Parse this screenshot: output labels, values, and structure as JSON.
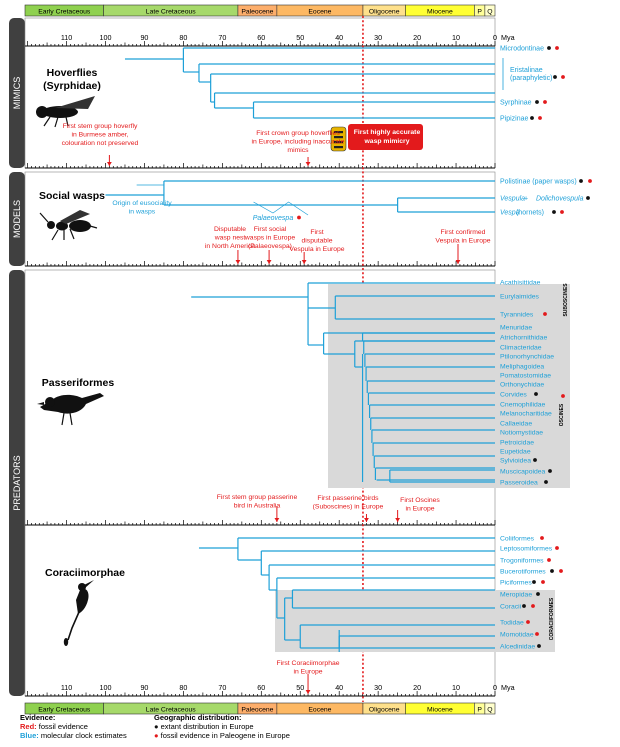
{
  "timescale": {
    "periods": [
      {
        "label": "Early Cretaceous",
        "color": "#8fd14f"
      },
      {
        "label": "Late Cretaceous",
        "color": "#a6d96a"
      },
      {
        "label": "Paleocene",
        "color": "#fdae6b"
      },
      {
        "label": "Eocene",
        "color": "#fdb863"
      },
      {
        "label": "Oligocene",
        "color": "#fee08b"
      },
      {
        "label": "Miocene",
        "color": "#ffff33"
      },
      {
        "label": "P",
        "color": "#ffff99"
      },
      {
        "label": "Q",
        "color": "#ffffcc"
      }
    ],
    "unit": "Mya",
    "ticks": [
      "110",
      "100",
      "90",
      "80",
      "70",
      "60",
      "50",
      "40",
      "30",
      "20",
      "10",
      "0"
    ]
  },
  "sections": {
    "mimics": {
      "side_label": "MIMICS",
      "title": "Hoverflies",
      "subtitle": "(Syrphidae)",
      "taxa": [
        "Microdontinae",
        "Eristalinae",
        "(paraphyletic)",
        "Syrphinae",
        "Pipizinae"
      ],
      "notes": {
        "stem_line1": "First stem group hoverfly",
        "stem_line2": "in Burmese amber,",
        "stem_line3": "colouration not preserved",
        "crown_line1": "First crown group hoverflies",
        "crown_line2": "in Europe, including inaccurate",
        "crown_line3": "mimics",
        "accurate_line1": "First highly accurate",
        "accurate_line2": "wasp mimicry"
      }
    },
    "models": {
      "side_label": "MODELS",
      "title": "Social wasps",
      "taxa": {
        "polistinae": "Polistinae (paper wasps)",
        "vespula_a": "Vespula",
        "vespula_plus": " + ",
        "dolichovespula": "Dolichovespula",
        "vespa": "Vespa",
        "vespa_rest": " (hornets)"
      },
      "palaeovespa": "Palaeovespa",
      "notes": {
        "origin_line1": "Origin of eusociality",
        "origin_line2": "in wasps",
        "nest_line1": "Disputable",
        "nest_line2": "wasp nest",
        "nest_line3": "in North America",
        "social_line1": "First social",
        "social_line2": "wasps in Europe",
        "social_line3": "(Palaeovespa)",
        "disp_line1": "First",
        "disp_line2": "disputable",
        "disp_line3": "Vespula in Europe",
        "conf_line1": "First confirmed",
        "conf_line2": "Vespula in Europe"
      }
    },
    "predators": {
      "side_label": "PREDATORS",
      "passeriformes_title": "Passeriformes",
      "suboscines": "SUBOSCINES",
      "oscines": "OSCINES",
      "passerine_taxa": [
        "Acathisittidae",
        "Eurylaimides",
        "Tyrannides",
        "Menuridae",
        "Atrichornithidae",
        "Climacteridae",
        "Ptilonorhynchidae",
        "Meliphagoidea",
        "Pomatostomidae",
        "Orthonychidae",
        "Corvides",
        "Cnemophilidae",
        "Melanocharitidae",
        "Callaeidae",
        "Notiomystidae",
        "Petroicidae",
        "Eupetidae",
        "Sylvioidea",
        "Muscicapoidea",
        "Passeroidea"
      ],
      "passerine_notes": {
        "stem_line1": "First stem group passerine",
        "stem_line2": "bird in Australia",
        "sub_line1": "First passerine birds",
        "sub_line2": "(Suboscines) in Europe",
        "osc_line1": "First Oscines",
        "osc_line2": "in Europe"
      },
      "coraciimorphae_title": "Coraciimorphae",
      "coraciiformes": "CORACIIFORMES",
      "coracii_taxa": [
        "Coliiformes",
        "Leptosomiformes",
        "Trogoniformes",
        "Bucerotiformes",
        "Piciformes",
        "Meropidae",
        "Coracii",
        "Todidae",
        "Momotidae",
        "Alcedinidae"
      ],
      "coracii_notes": {
        "line1": "First Coraciimorphae",
        "line2": "in Europe"
      }
    }
  },
  "legend": {
    "evidence_title": "Evidence:",
    "red_key": "Red:",
    "red_text": " fossil evidence",
    "blue_key": "Blue:",
    "blue_text": " molecular clock estimates",
    "geo_title": "Geographic distribution:",
    "geo_black": "extant distribution in Europe",
    "geo_red": "fossil evidence in Paleogene in Europe"
  },
  "colors": {
    "tree": "#1ea0d8",
    "red": "#e31a1c",
    "black": "#111111",
    "box": "#d9d9d9",
    "band": "#404040"
  }
}
